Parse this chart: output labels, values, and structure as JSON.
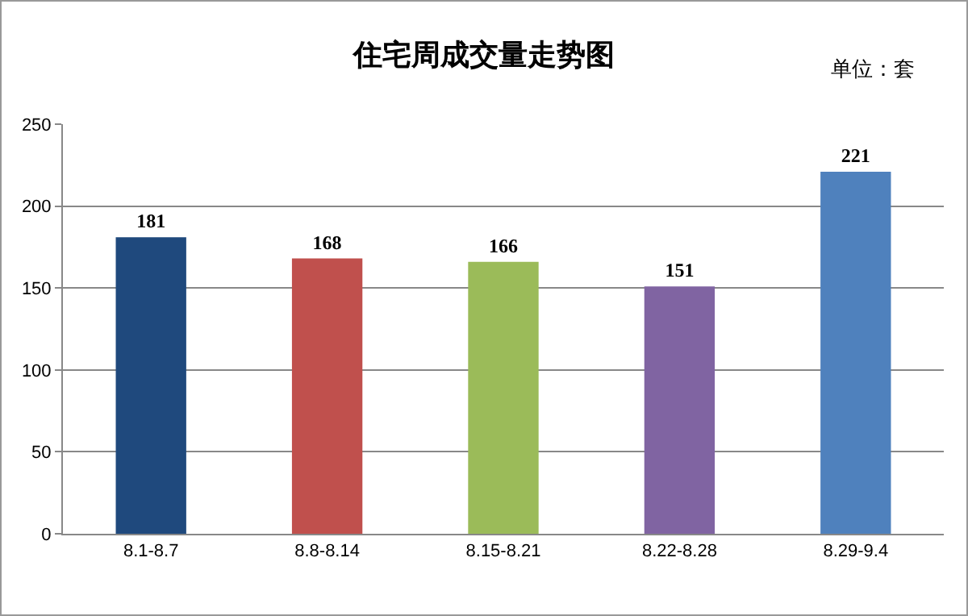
{
  "chart_data": {
    "type": "bar",
    "title": "住宅周成交量走势图",
    "annotations": [
      "单位：套"
    ],
    "categories": [
      "8.1-8.7",
      "8.8-8.14",
      "8.15-8.21",
      "8.22-8.28",
      "8.29-9.4"
    ],
    "values": [
      181,
      168,
      166,
      151,
      221
    ],
    "colors": [
      "#1f497d",
      "#c0504d",
      "#9bbb59",
      "#8064a2",
      "#4f81bd"
    ],
    "ylim": [
      0,
      250
    ],
    "yticks": [
      0,
      50,
      100,
      150,
      200,
      250
    ],
    "grid": "y",
    "data_labels": true
  }
}
